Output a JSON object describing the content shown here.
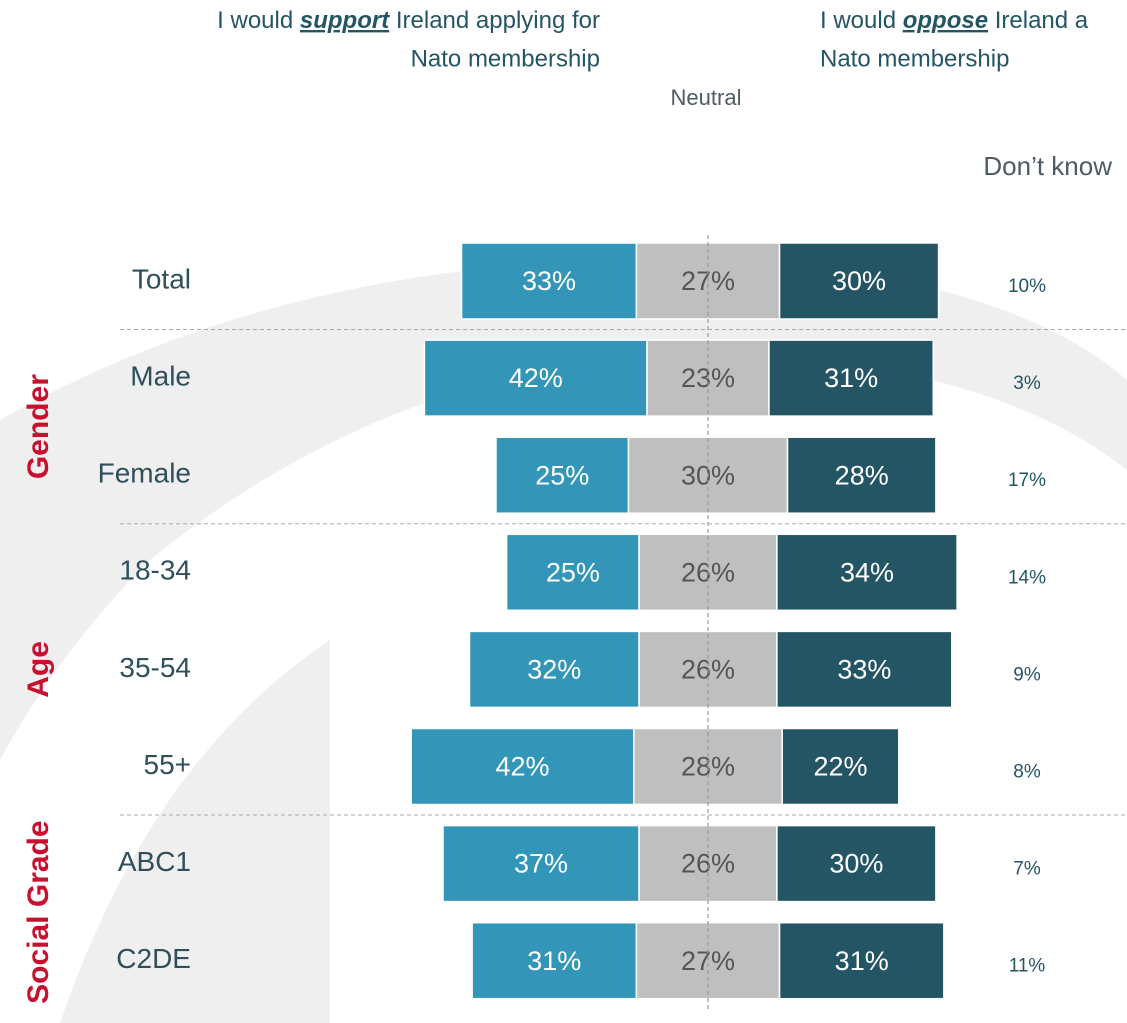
{
  "chart_data": {
    "type": "diverging_bar",
    "categories": [
      "Total",
      "Male",
      "Female",
      "18-34",
      "35-54",
      "55+",
      "ABC1",
      "C2DE"
    ],
    "groups": [
      {
        "label": "Gender",
        "rows": [
          1,
          2
        ]
      },
      {
        "label": "Age",
        "rows": [
          3,
          5
        ]
      },
      {
        "label": "Social Grade",
        "rows": [
          6,
          7
        ]
      }
    ],
    "series": [
      {
        "label_prefix": "I would ",
        "label_emphasis": "support",
        "label_suffix": " Ireland applying for",
        "label_line2": "Nato membership",
        "color": "#3396b8",
        "values": [
          33,
          42,
          25,
          25,
          32,
          42,
          37,
          31
        ],
        "value_labels": [
          "33%",
          "42%",
          "25%",
          "25%",
          "32%",
          "42%",
          "37%",
          "31%"
        ]
      },
      {
        "name": "Neutral",
        "color": "#bfbfbf",
        "values": [
          27,
          23,
          30,
          26,
          26,
          28,
          26,
          27
        ],
        "value_labels": [
          "27%",
          "23%",
          "30%",
          "26%",
          "26%",
          "28%",
          "26%",
          "27%"
        ]
      },
      {
        "label_prefix": "I would ",
        "label_emphasis": "oppose",
        "label_suffix": " Ireland a",
        "label_line2": "Nato membership",
        "color": "#245565",
        "values": [
          30,
          31,
          28,
          34,
          33,
          22,
          30,
          31
        ],
        "value_labels": [
          "30%",
          "31%",
          "28%",
          "34%",
          "33%",
          "22%",
          "30%",
          "31%"
        ]
      },
      {
        "name": "Don’t know",
        "color": "#245565",
        "values": [
          10,
          3,
          17,
          14,
          9,
          8,
          7,
          11
        ],
        "value_labels": [
          "10%",
          "3%",
          "17%",
          "14%",
          "9%",
          "8%",
          "7%",
          "11%"
        ]
      }
    ]
  }
}
